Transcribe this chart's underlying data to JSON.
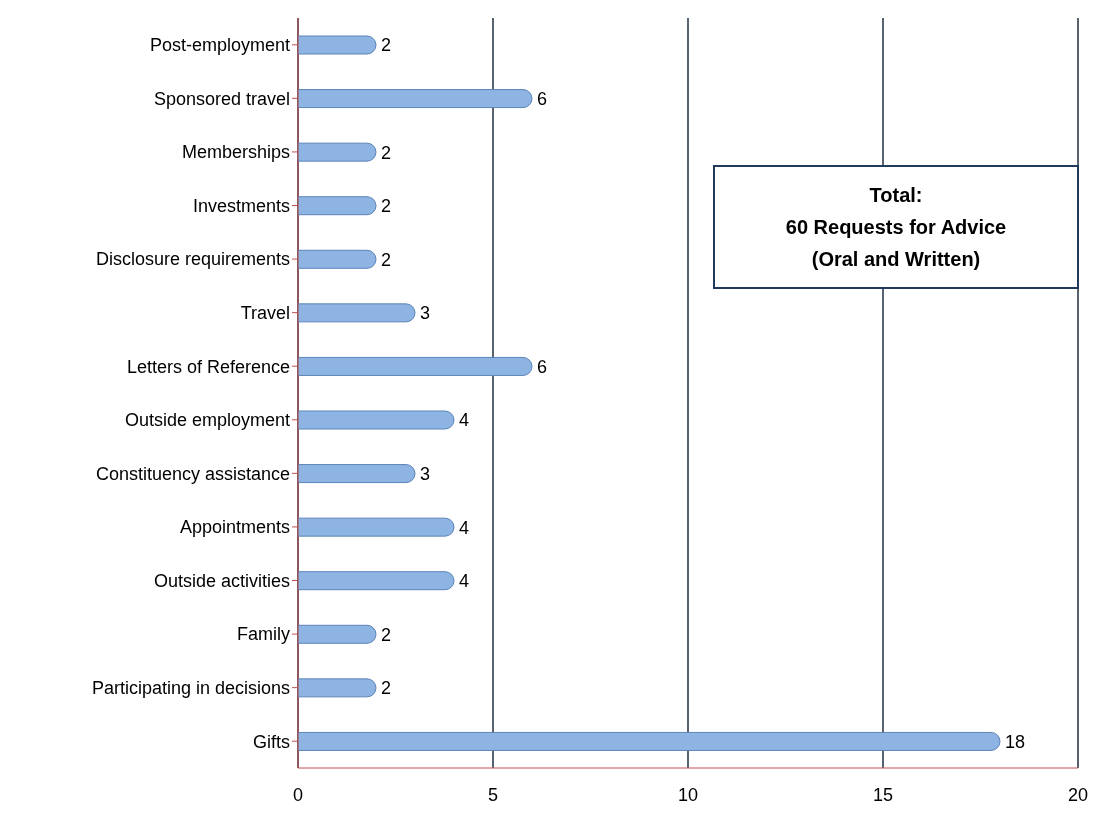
{
  "chart_data": {
    "type": "bar",
    "orientation": "horizontal",
    "categories": [
      "Post-employment",
      "Sponsored travel",
      "Memberships",
      "Investments",
      "Disclosure requirements",
      "Travel",
      "Letters of Reference",
      "Outside employment",
      "Constituency assistance",
      "Appointments",
      "Outside activities",
      "Family",
      "Participating in decisions",
      "Gifts"
    ],
    "values": [
      2,
      6,
      2,
      2,
      2,
      3,
      6,
      4,
      3,
      4,
      4,
      2,
      2,
      18
    ],
    "color": "#8eb4e3",
    "xlim": [
      0,
      20
    ],
    "xticks": [
      0,
      5,
      10,
      15,
      20
    ],
    "grid": "x",
    "data_labels": true,
    "annotations": [
      "Total:\n60 Requests for Advice\n(Oral and Written)"
    ]
  }
}
